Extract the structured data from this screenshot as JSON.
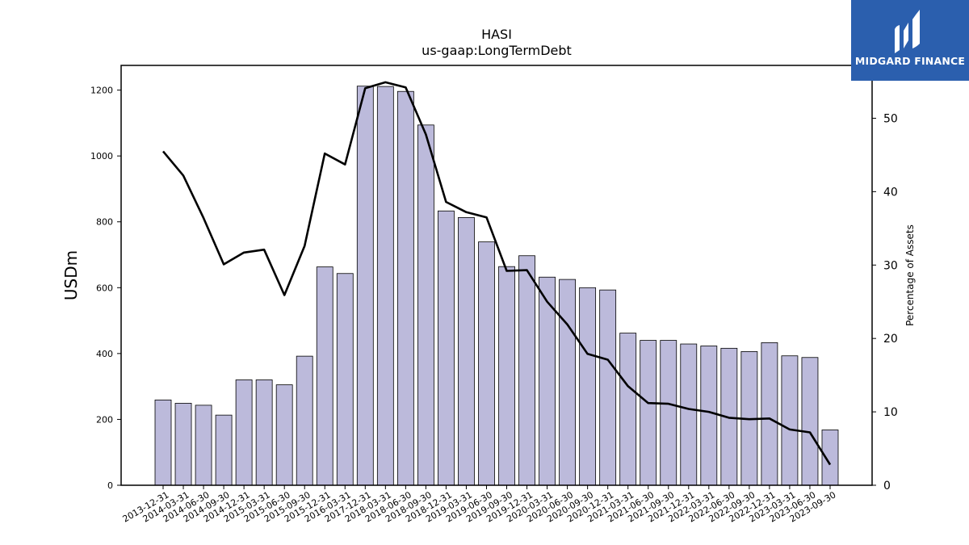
{
  "chart_data": {
    "type": "bar",
    "title": "HASI",
    "subtitle": "us-gaap:LongTermDebt",
    "ylabel": "USDm",
    "y2label": "Percentage of Assets",
    "ylim": [
      0,
      1275
    ],
    "y2lim": [
      0,
      57.2
    ],
    "yticks": [
      0,
      200,
      400,
      600,
      800,
      1000,
      1200
    ],
    "y2ticks": [
      0,
      10,
      20,
      30,
      40,
      50
    ],
    "categories": [
      "2013-12-31",
      "2014-03-31",
      "2014-06-30",
      "2014-09-30",
      "2014-12-31",
      "2015-03-31",
      "2015-06-30",
      "2015-09-30",
      "2015-12-31",
      "2016-03-31",
      "2017-12-31",
      "2018-03-31",
      "2018-06-30",
      "2018-09-30",
      "2018-12-31",
      "2019-03-31",
      "2019-06-30",
      "2019-09-30",
      "2019-12-31",
      "2020-03-31",
      "2020-06-30",
      "2020-09-30",
      "2020-12-31",
      "2021-03-31",
      "2021-06-30",
      "2021-09-30",
      "2021-12-31",
      "2022-03-31",
      "2022-06-30",
      "2022-09-30",
      "2022-12-31",
      "2023-03-31",
      "2023-06-30",
      "2023-09-30"
    ],
    "series": [
      {
        "type": "bar",
        "axis": "left",
        "color": "#bcbadb",
        "values": [
          259,
          249,
          243,
          213,
          320,
          320,
          305,
          392,
          663,
          643,
          1212,
          1211,
          1196,
          1094,
          833,
          813,
          739,
          664,
          697,
          632,
          625,
          600,
          593,
          462,
          440,
          440,
          429,
          423,
          416,
          406,
          433,
          393,
          388,
          168
        ]
      },
      {
        "type": "line",
        "axis": "right",
        "color": "#000000",
        "values": [
          45.5,
          42.2,
          36.4,
          30.1,
          31.7,
          32.1,
          25.9,
          32.6,
          45.2,
          43.7,
          54.1,
          54.9,
          54.2,
          47.8,
          38.6,
          37.2,
          36.5,
          29.2,
          29.3,
          25.0,
          21.9,
          17.9,
          17.1,
          13.5,
          11.2,
          11.1,
          10.4,
          10.0,
          9.2,
          9.0,
          9.1,
          7.6,
          7.2,
          2.8
        ]
      }
    ],
    "grid": false,
    "legend": "none"
  },
  "logo": {
    "text": "MIDGARD FINANCE",
    "bg": "#2b5fae"
  }
}
